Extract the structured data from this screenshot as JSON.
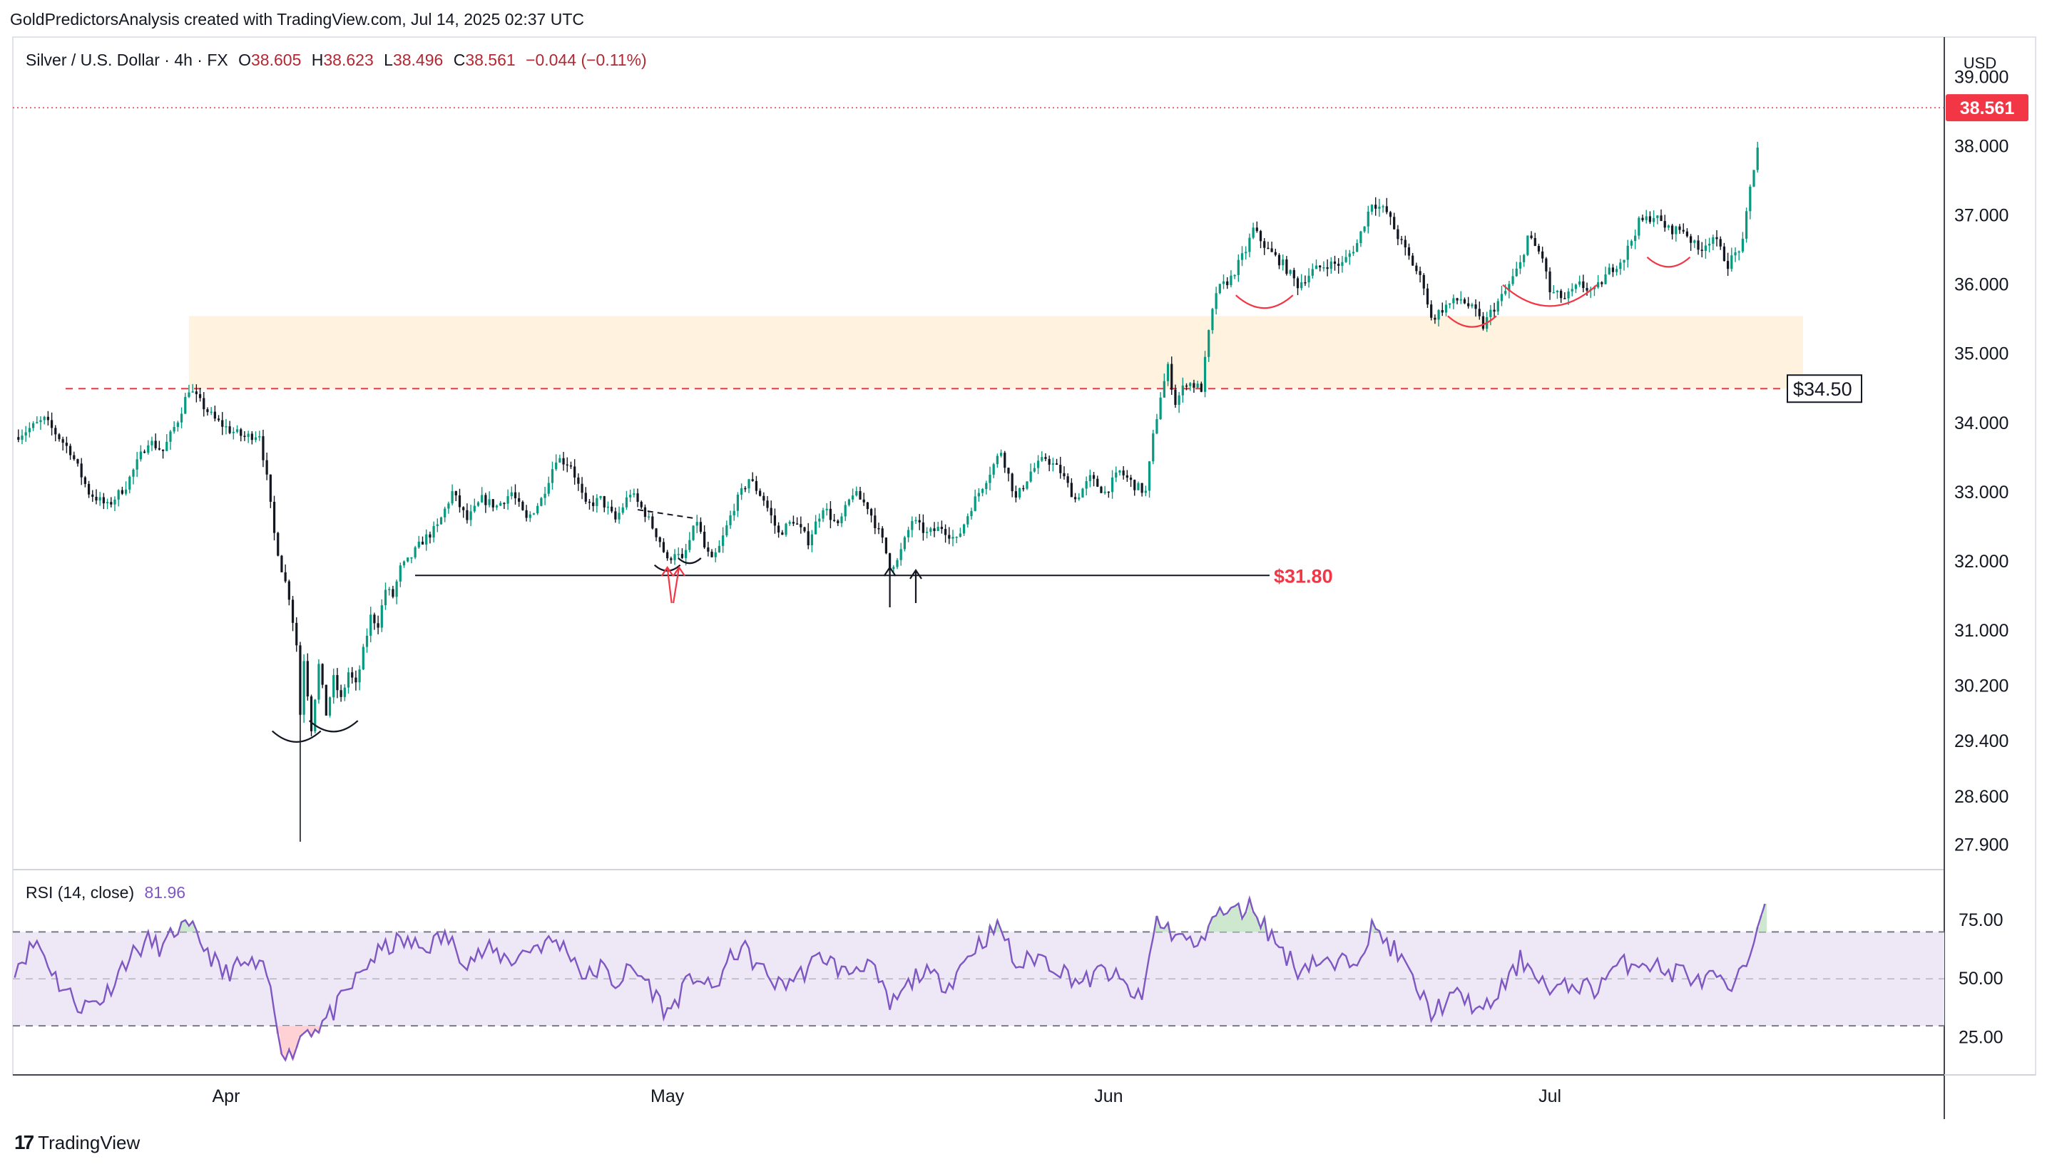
{
  "header": {
    "caption": "GoldPredictorsAnalysis created with TradingView.com, Jul 14, 2025 02:37 UTC"
  },
  "legend": {
    "symbol": "Silver / U.S. Dollar · 4h · FX",
    "open_label": "O",
    "open": "38.605",
    "high_label": "H",
    "high": "38.623",
    "low_label": "L",
    "low": "38.496",
    "close_label": "C",
    "close": "38.561",
    "change": "−0.044 (−0.11%)"
  },
  "currency": "USD",
  "last_price_label": "38.561",
  "colors": {
    "up": "#089981",
    "down": "#131722",
    "accent_red": "#f23645",
    "zone": "#fff3e0",
    "rsi": "#7e57c2",
    "rsi_band": "#ede7f6",
    "grid": "#e0e3eb"
  },
  "footer": {
    "brand": "TradingView",
    "icon": "tradingview-logo-icon"
  },
  "chart_data": [
    {
      "type": "candlestick",
      "title": "Silver / U.S. Dollar · 4h · FX",
      "ylim": [
        27.65,
        39.5
      ],
      "y_ticks": [
        "39.000",
        "38.000",
        "37.000",
        "36.000",
        "35.000",
        "34.000",
        "33.000",
        "32.000",
        "31.000",
        "30.200",
        "29.400",
        "28.600",
        "27.900"
      ],
      "y_tick_values": [
        39.0,
        38.0,
        37.0,
        36.0,
        35.0,
        34.0,
        33.0,
        32.0,
        31.0,
        30.2,
        29.4,
        28.6,
        27.9
      ],
      "x_ticks": [
        "Apr",
        "May",
        "Jun",
        "Jul"
      ],
      "x_tick_index": [
        57,
        176,
        295,
        414
      ],
      "bar_count": 470,
      "anchors": [
        [
          0,
          33.8
        ],
        [
          8,
          34.05
        ],
        [
          15,
          33.6
        ],
        [
          20,
          33.0
        ],
        [
          25,
          32.8
        ],
        [
          30,
          33.1
        ],
        [
          36,
          33.75
        ],
        [
          40,
          33.6
        ],
        [
          44,
          34.05
        ],
        [
          47,
          34.5
        ],
        [
          50,
          34.3
        ],
        [
          54,
          34.05
        ],
        [
          58,
          33.9
        ],
        [
          62,
          33.8
        ],
        [
          66,
          33.85
        ],
        [
          68,
          33.2
        ],
        [
          70,
          32.4
        ],
        [
          72,
          31.9
        ],
        [
          74,
          31.5
        ],
        [
          76,
          30.8
        ],
        [
          77,
          29.8
        ],
        [
          78,
          30.6
        ],
        [
          80,
          29.6
        ],
        [
          82,
          30.5
        ],
        [
          84,
          29.8
        ],
        [
          86,
          30.3
        ],
        [
          88,
          30.0
        ],
        [
          90,
          30.4
        ],
        [
          92,
          30.2
        ],
        [
          94,
          30.7
        ],
        [
          96,
          31.2
        ],
        [
          98,
          31.1
        ],
        [
          100,
          31.6
        ],
        [
          102,
          31.5
        ],
        [
          104,
          31.9
        ],
        [
          106,
          32.0
        ],
        [
          110,
          32.3
        ],
        [
          114,
          32.5
        ],
        [
          118,
          33.0
        ],
        [
          122,
          32.6
        ],
        [
          126,
          32.9
        ],
        [
          130,
          32.8
        ],
        [
          134,
          33.0
        ],
        [
          138,
          32.6
        ],
        [
          142,
          32.9
        ],
        [
          146,
          33.5
        ],
        [
          150,
          33.4
        ],
        [
          154,
          32.8
        ],
        [
          158,
          32.9
        ],
        [
          162,
          32.6
        ],
        [
          166,
          33.0
        ],
        [
          170,
          32.7
        ],
        [
          174,
          32.3
        ],
        [
          176,
          32.0
        ],
        [
          178,
          32.15
        ],
        [
          180,
          32.0
        ],
        [
          182,
          32.3
        ],
        [
          184,
          32.6
        ],
        [
          186,
          32.2
        ],
        [
          188,
          32.0
        ],
        [
          190,
          32.2
        ],
        [
          194,
          32.8
        ],
        [
          198,
          33.2
        ],
        [
          202,
          32.9
        ],
        [
          206,
          32.4
        ],
        [
          210,
          32.6
        ],
        [
          214,
          32.3
        ],
        [
          218,
          32.8
        ],
        [
          222,
          32.5
        ],
        [
          226,
          33.0
        ],
        [
          230,
          32.8
        ],
        [
          234,
          32.3
        ],
        [
          236,
          31.95
        ],
        [
          238,
          32.0
        ],
        [
          240,
          32.3
        ],
        [
          242,
          32.6
        ],
        [
          244,
          32.5
        ],
        [
          246,
          32.4
        ],
        [
          250,
          32.5
        ],
        [
          254,
          32.3
        ],
        [
          258,
          32.8
        ],
        [
          262,
          33.2
        ],
        [
          266,
          33.6
        ],
        [
          270,
          32.9
        ],
        [
          274,
          33.3
        ],
        [
          278,
          33.5
        ],
        [
          282,
          33.3
        ],
        [
          286,
          32.9
        ],
        [
          290,
          33.2
        ],
        [
          294,
          33.0
        ],
        [
          298,
          33.3
        ],
        [
          302,
          33.1
        ],
        [
          305,
          33.0
        ],
        [
          307,
          33.8
        ],
        [
          309,
          34.4
        ],
        [
          311,
          34.8
        ],
        [
          313,
          34.3
        ],
        [
          316,
          34.6
        ],
        [
          320,
          34.5
        ],
        [
          322,
          35.3
        ],
        [
          324,
          35.9
        ],
        [
          328,
          36.1
        ],
        [
          332,
          36.5
        ],
        [
          334,
          36.8
        ],
        [
          338,
          36.5
        ],
        [
          342,
          36.3
        ],
        [
          346,
          36.0
        ],
        [
          350,
          36.2
        ],
        [
          354,
          36.3
        ],
        [
          358,
          36.3
        ],
        [
          362,
          36.6
        ],
        [
          366,
          37.2
        ],
        [
          370,
          37.05
        ],
        [
          373,
          36.7
        ],
        [
          376,
          36.4
        ],
        [
          380,
          36.0
        ],
        [
          382,
          35.5
        ],
        [
          386,
          35.7
        ],
        [
          390,
          35.8
        ],
        [
          394,
          35.6
        ],
        [
          396,
          35.4
        ],
        [
          398,
          35.6
        ],
        [
          402,
          35.9
        ],
        [
          406,
          36.3
        ],
        [
          408,
          36.7
        ],
        [
          412,
          36.4
        ],
        [
          414,
          35.9
        ],
        [
          418,
          35.8
        ],
        [
          422,
          36.0
        ],
        [
          426,
          35.9
        ],
        [
          430,
          36.2
        ],
        [
          434,
          36.4
        ],
        [
          438,
          36.9
        ],
        [
          442,
          37.0
        ],
        [
          446,
          36.8
        ],
        [
          450,
          36.8
        ],
        [
          454,
          36.5
        ],
        [
          458,
          36.7
        ],
        [
          462,
          36.3
        ],
        [
          466,
          36.6
        ],
        [
          468,
          37.4
        ],
        [
          470,
          38.0
        ],
        [
          472,
          38.561
        ]
      ],
      "horizontal_levels": [
        {
          "value": 34.5,
          "label": "$34.50",
          "style": "dashed-red"
        },
        {
          "value": 31.8,
          "label": "$31.80",
          "style": "solid-black"
        }
      ],
      "support_zone": [
        34.5,
        35.55
      ]
    },
    {
      "type": "line",
      "title": "RSI (14, close)",
      "last_value": "81.96",
      "ylim": [
        10,
        95
      ],
      "y_ticks": [
        "75.00",
        "50.00",
        "25.00"
      ],
      "y_tick_values": [
        75,
        50,
        25
      ],
      "bands": [
        30,
        70
      ],
      "anchors": [
        [
          0,
          55
        ],
        [
          6,
          66
        ],
        [
          12,
          48
        ],
        [
          18,
          38
        ],
        [
          24,
          42
        ],
        [
          30,
          58
        ],
        [
          36,
          66
        ],
        [
          40,
          63
        ],
        [
          44,
          72
        ],
        [
          48,
          70
        ],
        [
          52,
          62
        ],
        [
          56,
          52
        ],
        [
          60,
          55
        ],
        [
          64,
          56
        ],
        [
          68,
          52
        ],
        [
          70,
          36
        ],
        [
          72,
          22
        ],
        [
          74,
          17
        ],
        [
          76,
          22
        ],
        [
          78,
          28
        ],
        [
          82,
          30
        ],
        [
          86,
          36
        ],
        [
          90,
          45
        ],
        [
          96,
          58
        ],
        [
          100,
          63
        ],
        [
          104,
          66
        ],
        [
          110,
          63
        ],
        [
          116,
          68
        ],
        [
          122,
          58
        ],
        [
          128,
          62
        ],
        [
          134,
          58
        ],
        [
          140,
          64
        ],
        [
          146,
          66
        ],
        [
          150,
          61
        ],
        [
          154,
          50
        ],
        [
          158,
          55
        ],
        [
          162,
          48
        ],
        [
          166,
          54
        ],
        [
          170,
          50
        ],
        [
          174,
          40
        ],
        [
          176,
          35
        ],
        [
          180,
          45
        ],
        [
          184,
          52
        ],
        [
          188,
          44
        ],
        [
          192,
          56
        ],
        [
          196,
          64
        ],
        [
          200,
          56
        ],
        [
          206,
          47
        ],
        [
          212,
          52
        ],
        [
          218,
          60
        ],
        [
          224,
          52
        ],
        [
          230,
          58
        ],
        [
          234,
          45
        ],
        [
          236,
          38
        ],
        [
          240,
          45
        ],
        [
          244,
          53
        ],
        [
          248,
          50
        ],
        [
          252,
          48
        ],
        [
          258,
          62
        ],
        [
          262,
          68
        ],
        [
          266,
          72
        ],
        [
          270,
          55
        ],
        [
          276,
          60
        ],
        [
          282,
          54
        ],
        [
          288,
          48
        ],
        [
          294,
          54
        ],
        [
          300,
          46
        ],
        [
          304,
          40
        ],
        [
          306,
          60
        ],
        [
          308,
          75
        ],
        [
          312,
          70
        ],
        [
          316,
          66
        ],
        [
          320,
          64
        ],
        [
          322,
          76
        ],
        [
          326,
          78
        ],
        [
          330,
          79
        ],
        [
          334,
          81
        ],
        [
          338,
          70
        ],
        [
          342,
          62
        ],
        [
          346,
          54
        ],
        [
          350,
          58
        ],
        [
          356,
          55
        ],
        [
          362,
          60
        ],
        [
          366,
          71
        ],
        [
          370,
          66
        ],
        [
          374,
          58
        ],
        [
          378,
          46
        ],
        [
          382,
          36
        ],
        [
          386,
          40
        ],
        [
          390,
          43
        ],
        [
          394,
          38
        ],
        [
          396,
          35
        ],
        [
          400,
          44
        ],
        [
          404,
          52
        ],
        [
          406,
          58
        ],
        [
          410,
          54
        ],
        [
          414,
          44
        ],
        [
          418,
          46
        ],
        [
          422,
          48
        ],
        [
          426,
          45
        ],
        [
          430,
          53
        ],
        [
          434,
          56
        ],
        [
          438,
          58
        ],
        [
          442,
          56
        ],
        [
          446,
          52
        ],
        [
          450,
          54
        ],
        [
          454,
          48
        ],
        [
          458,
          51
        ],
        [
          462,
          44
        ],
        [
          466,
          52
        ],
        [
          468,
          62
        ],
        [
          470,
          72
        ],
        [
          472,
          81.96
        ]
      ]
    }
  ],
  "annotations": {
    "level_label_3450": "$34.50",
    "level_label_3180": "$31.80"
  }
}
